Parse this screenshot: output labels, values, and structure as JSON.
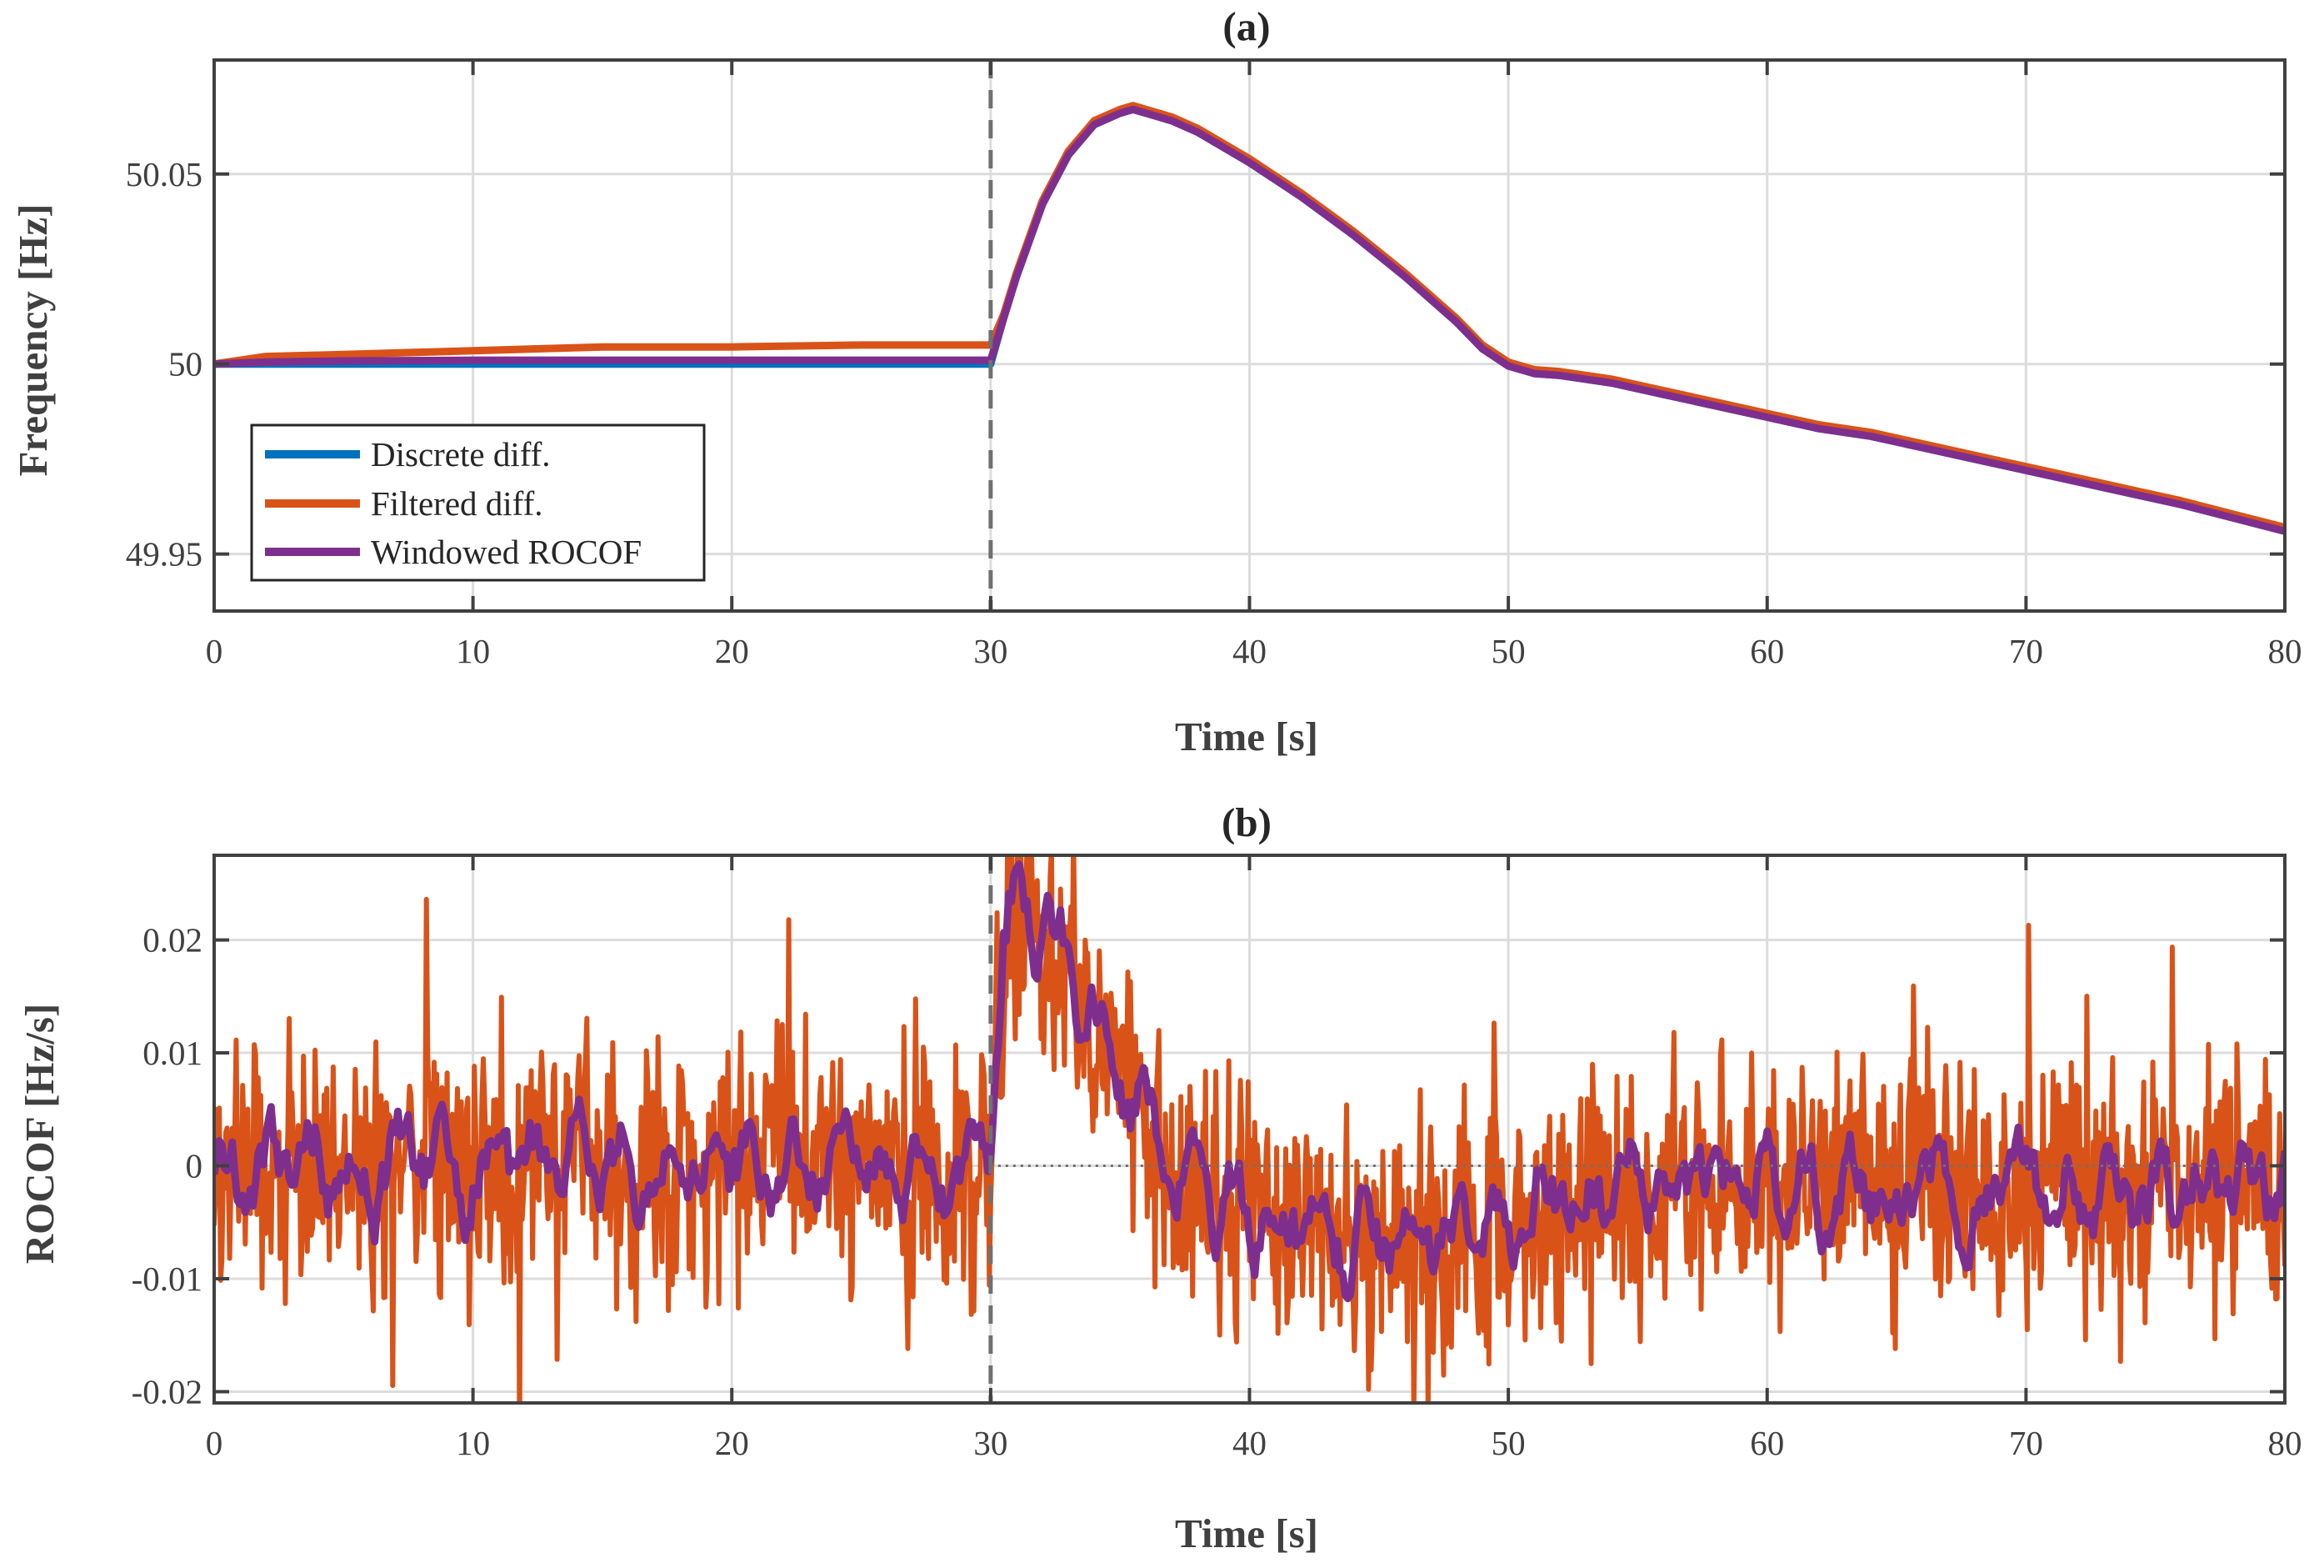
{
  "colors": {
    "discrete": "#0072BD",
    "filtered": "#D95319",
    "windowed": "#7E2F8E",
    "axis": "#404040",
    "grid": "#dcdcdc",
    "event_line": "#707070"
  },
  "chart_data": [
    {
      "type": "line",
      "title": "(a)",
      "xlabel": "Time [s]",
      "ylabel": "Frequency [Hz]",
      "xlim": [
        0,
        80
      ],
      "ylim": [
        49.935,
        50.08
      ],
      "xticks": [
        0,
        10,
        20,
        30,
        40,
        50,
        60,
        70,
        80
      ],
      "yticks": [
        49.95,
        50,
        50.05
      ],
      "ytick_labels": [
        "49.95",
        "50",
        "50.05"
      ],
      "grid": true,
      "legend_position": "bottom-left",
      "event_time": 30,
      "series": [
        {
          "name": "Discrete diff.",
          "color_key": "discrete",
          "x": [
            0,
            2,
            5,
            10,
            15,
            20,
            25,
            30,
            30.5,
            31,
            32,
            33,
            34,
            35,
            35.5,
            36,
            37,
            38,
            40,
            42,
            44,
            46,
            48,
            49,
            50,
            51,
            52,
            54,
            56,
            58,
            60,
            62,
            64,
            66,
            68,
            70,
            72,
            74,
            76,
            78,
            80
          ],
          "y": [
            50,
            50,
            50,
            50,
            50,
            50,
            50,
            50,
            50.012,
            50.023,
            50.042,
            50.055,
            50.063,
            50.066,
            50.067,
            50.066,
            50.064,
            50.061,
            50.053,
            50.044,
            50.034,
            50.023,
            50.011,
            50.004,
            49.9995,
            49.9975,
            49.997,
            49.995,
            49.992,
            49.989,
            49.986,
            49.983,
            49.981,
            49.978,
            49.975,
            49.972,
            49.969,
            49.966,
            49.963,
            49.9595,
            49.956
          ]
        },
        {
          "name": "Filtered diff.",
          "color_key": "filtered",
          "x": [
            0,
            2,
            5,
            10,
            15,
            20,
            25,
            30,
            30.5,
            31,
            32,
            33,
            34,
            35,
            35.5,
            36,
            37,
            38,
            40,
            42,
            44,
            46,
            48,
            49,
            50,
            51,
            52,
            54,
            56,
            58,
            60,
            62,
            64,
            66,
            68,
            70,
            72,
            74,
            76,
            78,
            80
          ],
          "y": [
            50,
            50.002,
            50.0025,
            50.0035,
            50.0045,
            50.0045,
            50.005,
            50.005,
            50.013,
            50.024,
            50.043,
            50.056,
            50.064,
            50.067,
            50.068,
            50.067,
            50.065,
            50.062,
            50.054,
            50.045,
            50.035,
            50.024,
            50.012,
            50.005,
            50.0005,
            49.9985,
            49.998,
            49.996,
            49.993,
            49.99,
            49.987,
            49.984,
            49.982,
            49.979,
            49.976,
            49.973,
            49.97,
            49.967,
            49.964,
            49.9605,
            49.957
          ]
        },
        {
          "name": "Windowed ROCOF",
          "color_key": "windowed",
          "x": [
            0,
            2,
            5,
            10,
            15,
            20,
            25,
            30,
            30.5,
            31,
            32,
            33,
            34,
            35,
            35.5,
            36,
            37,
            38,
            40,
            42,
            44,
            46,
            48,
            49,
            50,
            51,
            52,
            54,
            56,
            58,
            60,
            62,
            64,
            66,
            68,
            70,
            72,
            74,
            76,
            78,
            80
          ],
          "y": [
            50,
            50.0005,
            50.0008,
            50.001,
            50.001,
            50.001,
            50.001,
            50.001,
            50.012,
            50.023,
            50.042,
            50.055,
            50.063,
            50.066,
            50.067,
            50.066,
            50.064,
            50.061,
            50.053,
            50.044,
            50.034,
            50.023,
            50.011,
            50.004,
            49.9995,
            49.9975,
            49.997,
            49.995,
            49.992,
            49.989,
            49.986,
            49.983,
            49.981,
            49.978,
            49.975,
            49.972,
            49.969,
            49.966,
            49.963,
            49.9595,
            49.956
          ]
        }
      ]
    },
    {
      "type": "line",
      "title": "(b)",
      "xlabel": "Time [s]",
      "ylabel": "ROCOF [Hz/s]",
      "xlim": [
        0,
        80
      ],
      "ylim": [
        -0.021,
        0.0275
      ],
      "xticks": [
        0,
        10,
        20,
        30,
        40,
        50,
        60,
        70,
        80
      ],
      "yticks": [
        -0.02,
        -0.01,
        0,
        0.01,
        0.02
      ],
      "ytick_labels": [
        "-0.02",
        "-0.01",
        "0",
        "0.01",
        "0.02"
      ],
      "grid": true,
      "event_time": 30,
      "zero_line": true,
      "series": [
        {
          "name": "Filtered diff.",
          "color_key": "filtered",
          "noise_amplitude": 0.0055,
          "x": [
            0,
            5,
            10,
            15,
            20,
            25,
            29.9,
            30,
            30.5,
            31,
            32,
            33,
            34,
            35,
            36,
            37,
            38,
            40,
            42,
            44,
            46,
            48,
            50,
            52,
            55,
            60,
            65,
            70,
            75,
            80
          ],
          "y": [
            0,
            0,
            0,
            0,
            0,
            0,
            0,
            0,
            0.02,
            0.025,
            0.021,
            0.017,
            0.013,
            0.009,
            0.004,
            0.001,
            -0.002,
            -0.004,
            -0.005,
            -0.006,
            -0.007,
            -0.007,
            -0.006,
            -0.002,
            -0.002,
            -0.002,
            -0.002,
            -0.002,
            -0.002,
            -0.002
          ]
        },
        {
          "name": "Windowed ROCOF",
          "color_key": "windowed",
          "noise_amplitude": 0.0022,
          "x": [
            0,
            5,
            10,
            15,
            20,
            25,
            29.9,
            30,
            30.5,
            31,
            32,
            33,
            34,
            35,
            36,
            37,
            38,
            40,
            42,
            44,
            46,
            48,
            50,
            52,
            55,
            60,
            65,
            70,
            75,
            80
          ],
          "y": [
            0,
            0,
            0,
            0,
            0,
            0,
            0,
            0,
            0.02,
            0.025,
            0.021,
            0.017,
            0.013,
            0.009,
            0.004,
            0.001,
            -0.002,
            -0.004,
            -0.005,
            -0.006,
            -0.007,
            -0.007,
            -0.006,
            -0.002,
            -0.002,
            -0.002,
            -0.002,
            -0.002,
            -0.002,
            -0.002
          ]
        }
      ]
    }
  ]
}
